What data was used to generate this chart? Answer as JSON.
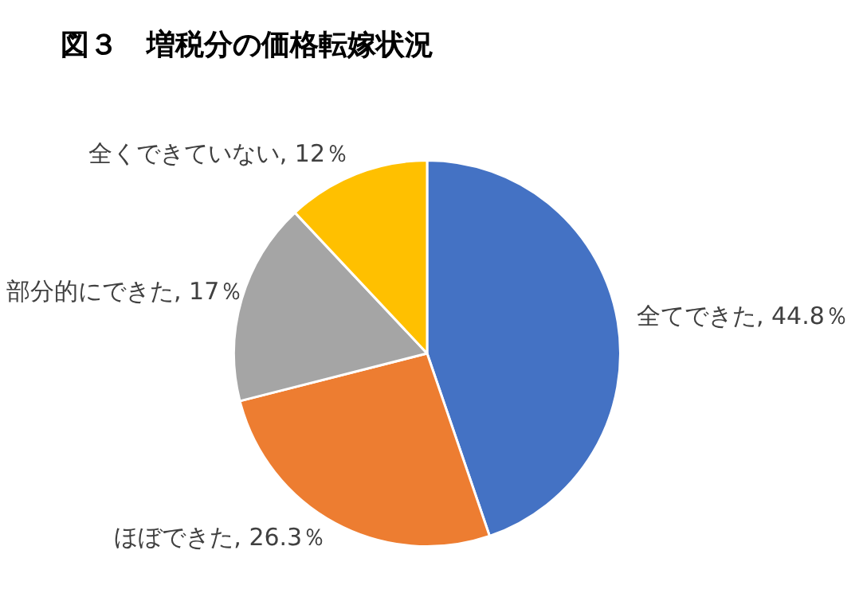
{
  "chart_data": {
    "type": "pie",
    "title": "図３　増税分の価格転嫁状況",
    "categories": [
      "全てできた",
      "ほぼできた",
      "部分的にできた",
      "全くできていない"
    ],
    "values": [
      44.8,
      26.3,
      17,
      12
    ],
    "value_labels": [
      "44.8％",
      "26.3％",
      "17％",
      "12％"
    ],
    "colors": [
      "#4472c4",
      "#ed7d31",
      "#a5a5a5",
      "#ffc000"
    ],
    "legend": false
  }
}
